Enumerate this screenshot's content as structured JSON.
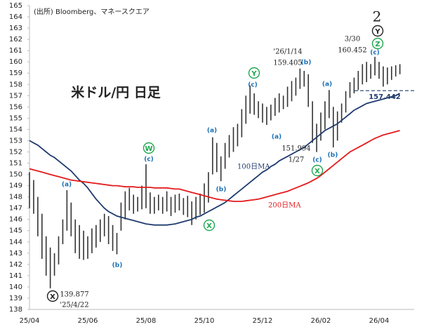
{
  "chart_data": {
    "type": "range-bar",
    "source": "(出所) Bloomberg、マネースクエア",
    "title": "米ドル/円 日足",
    "wave_degree": "2",
    "wave_labels": [
      "X",
      "W",
      "X",
      "Y",
      "X",
      "Z",
      "Y"
    ],
    "sub_labels": [
      "(a)",
      "(b)",
      "(c)",
      "(a)",
      "(b)",
      "(c)",
      "(a)",
      "(b)",
      "(c)",
      "(a)",
      "(b)",
      "(c)"
    ],
    "price_notes": [
      "139.877",
      "'25/4/22",
      "'26/1/14",
      "159.405",
      "151.994",
      "1/27",
      "3/30",
      "160.452"
    ],
    "reference_line": 157.442,
    "reference_color": "#1f3b6e",
    "bar_color": "#333333",
    "categories": [
      "25/04",
      null,
      null,
      null,
      null,
      null,
      null,
      null,
      null,
      null,
      null,
      null,
      null,
      null,
      "25/06",
      null,
      null,
      null,
      null,
      null,
      null,
      null,
      null,
      null,
      null,
      null,
      null,
      null,
      "25/08",
      null,
      null,
      null,
      null,
      null,
      null,
      null,
      null,
      null,
      null,
      null,
      null,
      null,
      "25/10",
      null,
      null,
      null,
      null,
      null,
      null,
      null,
      null,
      null,
      null,
      null,
      null,
      null,
      "25/12",
      null,
      null,
      null,
      null,
      null,
      null,
      null,
      null,
      null,
      null,
      null,
      null,
      null,
      "26/02",
      null,
      null,
      null,
      null,
      null,
      null,
      null,
      null,
      null,
      null,
      null,
      null,
      null,
      "26/04",
      null,
      null,
      null,
      null,
      null
    ],
    "high": [
      150.2,
      149.5,
      148.0,
      146.5,
      144.5,
      143.5,
      143.0,
      144.5,
      146.0,
      148.6,
      147.5,
      146.0,
      145.5,
      145.0,
      144.5,
      145.2,
      145.5,
      146.0,
      146.5,
      146.3,
      145.5,
      144.8,
      147.5,
      148.5,
      148.8,
      148.2,
      148.0,
      149.0,
      150.9,
      148.4,
      148.0,
      148.2,
      148.0,
      148.5,
      148.0,
      148.2,
      148.3,
      147.9,
      148.1,
      147.6,
      148.0,
      148.3,
      149.2,
      150.2,
      153.3,
      152.8,
      151.6,
      152.8,
      153.5,
      154.2,
      154.5,
      155.8,
      157.0,
      157.9,
      157.2,
      156.5,
      156.3,
      156.0,
      156.2,
      156.8,
      157.2,
      157.0,
      157.8,
      158.3,
      158.6,
      159.405,
      159.2,
      158.9,
      156.5,
      154.5,
      155.5,
      156.5,
      157.5,
      156.0,
      155.6,
      156.3,
      157.4,
      158.2,
      158.6,
      159.2,
      159.8,
      160.0,
      159.8,
      160.452,
      160.0,
      159.6,
      159.5,
      159.6,
      159.7,
      159.8
    ],
    "low": [
      147.0,
      146.5,
      144.5,
      142.5,
      141.0,
      139.877,
      141.0,
      142.0,
      143.8,
      145.0,
      144.5,
      143.0,
      142.5,
      142.4,
      142.5,
      143.0,
      143.5,
      144.0,
      144.5,
      143.8,
      143.2,
      142.9,
      145.0,
      146.0,
      146.8,
      146.5,
      146.7,
      146.9,
      147.0,
      146.5,
      146.5,
      146.8,
      146.5,
      146.7,
      146.3,
      146.6,
      146.8,
      146.4,
      146.2,
      145.5,
      146.0,
      146.4,
      146.6,
      147.5,
      150.0,
      150.2,
      149.4,
      150.5,
      151.5,
      152.0,
      152.5,
      153.3,
      154.5,
      155.4,
      155.3,
      155.0,
      154.6,
      154.4,
      154.8,
      155.2,
      155.5,
      155.8,
      156.0,
      156.5,
      157.0,
      157.6,
      157.8,
      156.0,
      152.8,
      151.994,
      153.0,
      154.0,
      155.0,
      152.4,
      153.0,
      154.6,
      155.5,
      156.8,
      157.2,
      157.5,
      158.0,
      158.2,
      158.5,
      158.8,
      158.5,
      157.8,
      158.0,
      158.4,
      158.7,
      158.9
    ],
    "series": [
      {
        "name": "100日MA",
        "color": "#1f3b6e",
        "values": [
          153.0,
          152.8,
          152.6,
          152.3,
          152.0,
          151.7,
          151.5,
          151.2,
          150.9,
          150.6,
          150.3,
          149.9,
          149.5,
          149.2,
          148.8,
          148.3,
          147.8,
          147.4,
          147.0,
          146.7,
          146.5,
          146.3,
          146.2,
          146.1,
          146.0,
          145.9,
          145.8,
          145.7,
          145.6,
          145.55,
          145.5,
          145.5,
          145.5,
          145.5,
          145.55,
          145.6,
          145.7,
          145.8,
          145.9,
          146.0,
          146.2,
          146.3,
          146.5,
          146.7,
          146.9,
          147.1,
          147.3,
          147.5,
          147.8,
          148.1,
          148.4,
          148.7,
          149.0,
          149.3,
          149.6,
          149.9,
          150.2,
          150.4,
          150.7,
          150.9,
          151.2,
          151.4,
          151.6,
          151.8,
          152.0,
          152.2,
          152.4,
          152.7,
          153.0,
          153.3,
          153.6,
          153.9,
          154.1,
          154.3,
          154.5,
          154.8,
          155.1,
          155.4,
          155.7,
          155.9,
          156.1,
          156.3,
          156.4,
          156.5,
          156.6,
          156.7,
          156.8,
          156.9,
          157.0,
          157.2
        ]
      },
      {
        "name": "200日MA",
        "color": "#e31a1c",
        "values": [
          150.5,
          150.4,
          150.3,
          150.2,
          150.1,
          150.0,
          149.9,
          149.8,
          149.7,
          149.6,
          149.5,
          149.45,
          149.4,
          149.35,
          149.3,
          149.25,
          149.2,
          149.15,
          149.1,
          149.05,
          149.0,
          149.0,
          148.95,
          148.9,
          148.9,
          148.9,
          148.85,
          148.85,
          148.85,
          148.85,
          148.8,
          148.8,
          148.8,
          148.8,
          148.75,
          148.7,
          148.7,
          148.6,
          148.5,
          148.4,
          148.3,
          148.2,
          148.1,
          148.0,
          147.9,
          147.8,
          147.75,
          147.7,
          147.65,
          147.6,
          147.6,
          147.6,
          147.65,
          147.7,
          147.75,
          147.8,
          147.9,
          148.0,
          148.1,
          148.2,
          148.3,
          148.4,
          148.5,
          148.65,
          148.8,
          148.95,
          149.1,
          149.25,
          149.45,
          149.65,
          149.9,
          150.2,
          150.5,
          150.8,
          151.1,
          151.4,
          151.7,
          152.0,
          152.2,
          152.4,
          152.6,
          152.8,
          153.0,
          153.2,
          153.35,
          153.5,
          153.6,
          153.7,
          153.8,
          153.9
        ]
      }
    ],
    "ylim": [
      138,
      165
    ],
    "yticks": [
      138,
      139,
      140,
      141,
      142,
      143,
      144,
      145,
      146,
      147,
      148,
      149,
      150,
      151,
      152,
      153,
      154,
      155,
      156,
      157,
      158,
      159,
      160,
      161,
      162,
      163,
      164,
      165
    ],
    "grid": false
  }
}
